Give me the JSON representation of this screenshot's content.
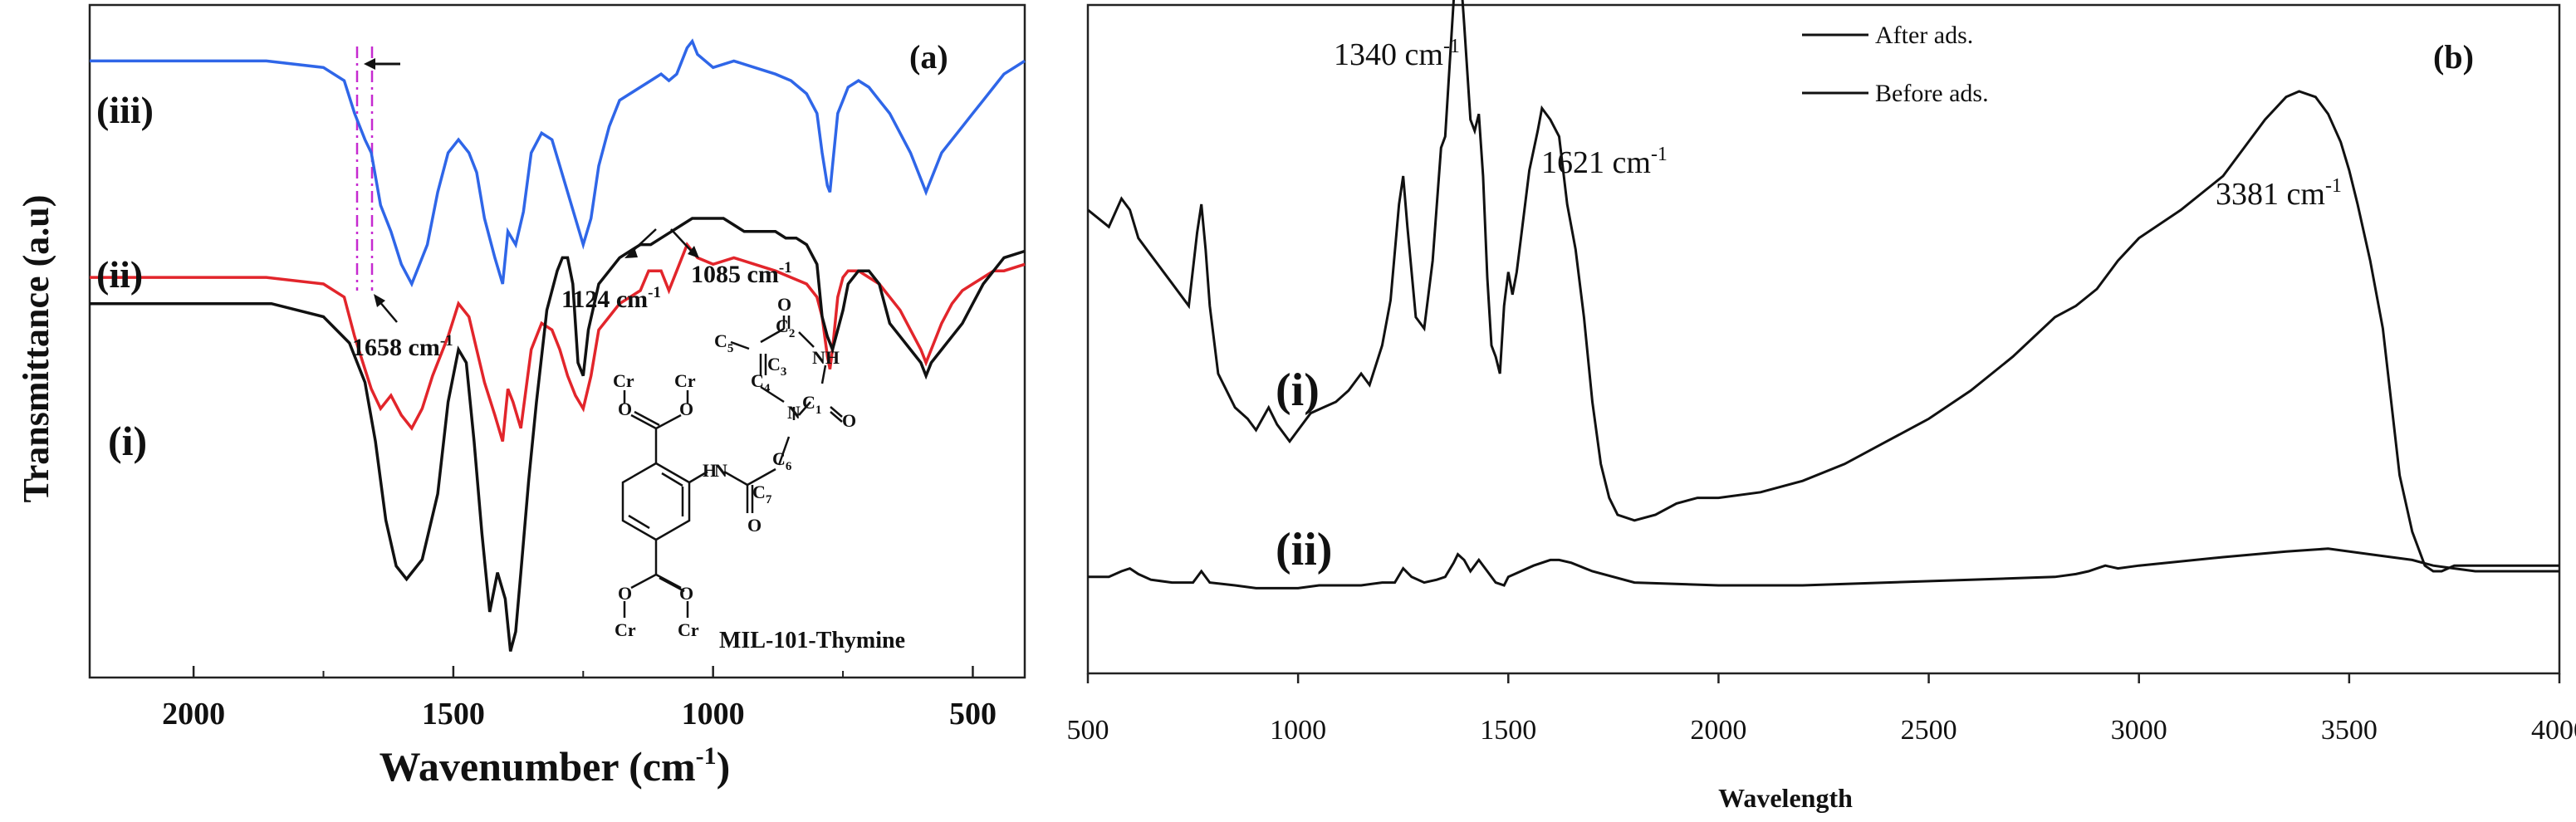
{
  "chart_data": [
    {
      "id": "a",
      "type": "line",
      "panel_label": "(a)",
      "xlabel": "Wavenumber (cm",
      "xlabel_sup": "-1",
      "xlabel_end": ")",
      "ylabel": "Transmittance (a.u)",
      "x_reversed": true,
      "xlim": [
        2200,
        400
      ],
      "x_ticks": [
        "2000",
        "1500",
        "1000",
        "500"
      ],
      "x_tick_values": [
        2000,
        1500,
        1000,
        500
      ],
      "colors": {
        "iii": "#2f66e8",
        "ii": "#e2252b",
        "i": "#111111",
        "marker": "#c62ad0"
      },
      "series": [
        {
          "name": "(iii)",
          "color": "#2f66e8",
          "x": [
            2200,
            2000,
            1860,
            1750,
            1710,
            1690,
            1670,
            1658,
            1640,
            1620,
            1600,
            1580,
            1550,
            1530,
            1510,
            1490,
            1470,
            1455,
            1440,
            1420,
            1405,
            1395,
            1380,
            1365,
            1350,
            1330,
            1310,
            1295,
            1280,
            1265,
            1250,
            1235,
            1220,
            1200,
            1180,
            1160,
            1140,
            1120,
            1100,
            1085,
            1070,
            1050,
            1040,
            1030,
            1000,
            960,
            920,
            880,
            850,
            820,
            800,
            790,
            780,
            775,
            770,
            760,
            750,
            740,
            720,
            700,
            680,
            660,
            640,
            620,
            600,
            590,
            575,
            560,
            540,
            520,
            500,
            480,
            460,
            440,
            400
          ],
          "y": [
            94,
            94,
            94,
            93,
            91,
            86,
            82,
            80,
            72,
            68,
            63,
            60,
            66,
            74,
            80,
            82,
            80,
            77,
            70,
            64,
            60,
            68,
            66,
            71,
            80,
            83,
            82,
            78,
            74,
            70,
            66,
            70,
            78,
            84,
            88,
            89,
            90,
            91,
            92,
            91,
            92,
            96,
            97,
            95,
            93,
            94,
            93,
            92,
            91,
            89,
            86,
            80,
            75,
            74,
            78,
            86,
            88,
            90,
            91,
            90,
            88,
            86,
            83,
            80,
            76,
            74,
            77,
            80,
            82,
            84,
            86,
            88,
            90,
            92,
            94
          ]
        },
        {
          "name": "(ii)",
          "color": "#e2252b",
          "x": [
            2200,
            2000,
            1860,
            1750,
            1710,
            1690,
            1670,
            1658,
            1640,
            1620,
            1600,
            1580,
            1560,
            1540,
            1510,
            1490,
            1470,
            1455,
            1440,
            1420,
            1405,
            1395,
            1385,
            1370,
            1350,
            1330,
            1310,
            1295,
            1280,
            1265,
            1250,
            1235,
            1220,
            1200,
            1180,
            1160,
            1140,
            1124,
            1100,
            1085,
            1070,
            1050,
            1030,
            1000,
            960,
            920,
            880,
            850,
            820,
            800,
            790,
            780,
            775,
            770,
            760,
            750,
            740,
            720,
            700,
            680,
            660,
            640,
            620,
            600,
            590,
            575,
            560,
            540,
            520,
            500,
            480,
            460,
            440,
            400
          ],
          "y": [
            61,
            61,
            61,
            60,
            58,
            52,
            47,
            44,
            41,
            43,
            40,
            38,
            41,
            46,
            52,
            57,
            55,
            50,
            45,
            40,
            36,
            44,
            42,
            38,
            50,
            54,
            53,
            50,
            46,
            43,
            41,
            46,
            53,
            55,
            57,
            58,
            59,
            62,
            62,
            59,
            62,
            66,
            64,
            63,
            64,
            63,
            62,
            61,
            60,
            58,
            55,
            49,
            47,
            50,
            58,
            61,
            62,
            62,
            61,
            60,
            58,
            56,
            53,
            50,
            48,
            51,
            54,
            57,
            59,
            60,
            61,
            62,
            62,
            63
          ]
        },
        {
          "name": "(i)",
          "color": "#111111",
          "x": [
            2200,
            2000,
            1850,
            1750,
            1700,
            1670,
            1650,
            1630,
            1610,
            1590,
            1560,
            1530,
            1510,
            1490,
            1475,
            1460,
            1445,
            1430,
            1415,
            1400,
            1390,
            1380,
            1370,
            1355,
            1340,
            1320,
            1300,
            1290,
            1280,
            1270,
            1260,
            1250,
            1240,
            1220,
            1200,
            1180,
            1160,
            1140,
            1120,
            1100,
            1080,
            1060,
            1040,
            1020,
            1000,
            980,
            960,
            940,
            920,
            900,
            880,
            860,
            840,
            820,
            800,
            790,
            780,
            770,
            760,
            750,
            740,
            720,
            700,
            680,
            660,
            640,
            620,
            600,
            590,
            580,
            560,
            540,
            520,
            500,
            480,
            460,
            440,
            400
          ],
          "y": [
            57,
            57,
            57,
            55,
            51,
            45,
            36,
            24,
            17,
            15,
            18,
            28,
            42,
            50,
            48,
            36,
            22,
            10,
            16,
            12,
            4,
            7,
            16,
            30,
            42,
            56,
            62,
            64,
            64,
            60,
            48,
            46,
            53,
            60,
            62,
            64,
            65,
            66,
            66,
            67,
            68,
            69,
            70,
            70,
            70,
            70,
            69,
            68,
            68,
            68,
            68,
            67,
            67,
            66,
            63,
            55,
            52,
            50,
            53,
            56,
            60,
            62,
            62,
            60,
            54,
            52,
            50,
            48,
            46,
            48,
            50,
            52,
            54,
            57,
            60,
            62,
            64,
            65
          ]
        }
      ],
      "annotations": {
        "peak_1658": "1658 cm",
        "peak_1124": "1124 cm",
        "peak_1085": "1085 cm",
        "sup": "-1",
        "label_iii": "(iii)",
        "label_ii": "(ii)",
        "label_i": "(i)",
        "structure_name": "MIL-101-Thymine",
        "atoms": {
          "cr": "Cr",
          "o": "O",
          "nh": "NH",
          "n": "N",
          "h": "H",
          "c": "C",
          "sub1": "1",
          "sub2": "2",
          "sub3": "3",
          "sub4": "4",
          "sub5": "5",
          "sub6": "6",
          "sub7": "7"
        }
      }
    },
    {
      "id": "b",
      "type": "line",
      "panel_label": "(b)",
      "xlabel": "Wavelength",
      "xlim": [
        500,
        4000
      ],
      "x_ticks": [
        "500",
        "1000",
        "1500",
        "2000",
        "2500",
        "3000",
        "3500",
        "4000"
      ],
      "x_tick_values": [
        500,
        1000,
        1500,
        2000,
        2500,
        3000,
        3500,
        4000
      ],
      "legend": [
        "After ads.",
        "Before ads."
      ],
      "legend_position": "top-center",
      "series": [
        {
          "name": "(i)",
          "color": "#111111",
          "x": [
            500,
            550,
            580,
            600,
            620,
            650,
            700,
            740,
            760,
            770,
            780,
            790,
            810,
            850,
            880,
            900,
            930,
            950,
            980,
            1000,
            1030,
            1060,
            1090,
            1120,
            1150,
            1170,
            1200,
            1220,
            1240,
            1250,
            1260,
            1280,
            1300,
            1320,
            1340,
            1350,
            1365,
            1380,
            1395,
            1410,
            1420,
            1430,
            1440,
            1450,
            1460,
            1470,
            1480,
            1490,
            1500,
            1510,
            1520,
            1530,
            1550,
            1570,
            1580,
            1600,
            1621,
            1640,
            1660,
            1680,
            1700,
            1720,
            1740,
            1760,
            1800,
            1850,
            1900,
            1950,
            2000,
            2100,
            2200,
            2300,
            2400,
            2500,
            2600,
            2700,
            2800,
            2850,
            2900,
            2950,
            3000,
            3100,
            3200,
            3250,
            3300,
            3350,
            3381,
            3420,
            3450,
            3480,
            3500,
            3520,
            3550,
            3580,
            3600,
            3620,
            3650,
            3680,
            3700,
            3720,
            3750,
            3800,
            3900,
            4000
          ],
          "y": [
            0.79,
            0.76,
            0.81,
            0.79,
            0.74,
            0.71,
            0.66,
            0.62,
            0.75,
            0.8,
            0.72,
            0.62,
            0.5,
            0.44,
            0.42,
            0.4,
            0.44,
            0.41,
            0.38,
            0.4,
            0.43,
            0.44,
            0.45,
            0.47,
            0.5,
            0.48,
            0.55,
            0.63,
            0.8,
            0.85,
            0.76,
            0.6,
            0.58,
            0.7,
            0.9,
            0.92,
            1.1,
            1.28,
            1.12,
            0.95,
            0.93,
            0.96,
            0.85,
            0.67,
            0.55,
            0.53,
            0.5,
            0.62,
            0.68,
            0.64,
            0.68,
            0.74,
            0.86,
            0.93,
            0.97,
            0.95,
            0.92,
            0.8,
            0.72,
            0.6,
            0.45,
            0.34,
            0.28,
            0.25,
            0.24,
            0.25,
            0.27,
            0.28,
            0.28,
            0.29,
            0.31,
            0.34,
            0.38,
            0.42,
            0.47,
            0.53,
            0.6,
            0.62,
            0.65,
            0.7,
            0.74,
            0.79,
            0.85,
            0.9,
            0.95,
            0.99,
            1.0,
            0.99,
            0.96,
            0.91,
            0.86,
            0.8,
            0.7,
            0.58,
            0.45,
            0.32,
            0.22,
            0.16,
            0.15,
            0.15,
            0.16,
            0.16,
            0.16,
            0.16
          ]
        },
        {
          "name": "(ii)",
          "color": "#111111",
          "x": [
            500,
            550,
            580,
            600,
            620,
            650,
            700,
            750,
            770,
            790,
            850,
            900,
            950,
            1000,
            1050,
            1100,
            1150,
            1200,
            1230,
            1250,
            1270,
            1300,
            1330,
            1350,
            1370,
            1380,
            1395,
            1410,
            1430,
            1450,
            1470,
            1490,
            1500,
            1530,
            1560,
            1600,
            1621,
            1650,
            1700,
            1800,
            2000,
            2200,
            2400,
            2600,
            2800,
            2850,
            2880,
            2900,
            2920,
            2950,
            3000,
            3200,
            3350,
            3450,
            3550,
            3650,
            3700,
            3750,
            3800,
            3900,
            4000
          ],
          "y": [
            0.14,
            0.14,
            0.15,
            0.155,
            0.145,
            0.135,
            0.13,
            0.13,
            0.15,
            0.13,
            0.125,
            0.12,
            0.12,
            0.12,
            0.125,
            0.125,
            0.125,
            0.13,
            0.13,
            0.155,
            0.14,
            0.13,
            0.135,
            0.14,
            0.165,
            0.18,
            0.17,
            0.15,
            0.17,
            0.15,
            0.13,
            0.125,
            0.14,
            0.15,
            0.16,
            0.17,
            0.17,
            0.165,
            0.15,
            0.13,
            0.125,
            0.125,
            0.13,
            0.135,
            0.14,
            0.145,
            0.15,
            0.155,
            0.16,
            0.155,
            0.16,
            0.175,
            0.185,
            0.19,
            0.18,
            0.17,
            0.16,
            0.155,
            0.15,
            0.15,
            0.15
          ]
        }
      ],
      "annotations": {
        "peak_1340": "1340 cm",
        "peak_1621": "1621 cm",
        "peak_3381": "3381 cm",
        "sup": "-1",
        "label_i": "(i)",
        "label_ii": "(ii)"
      }
    }
  ]
}
